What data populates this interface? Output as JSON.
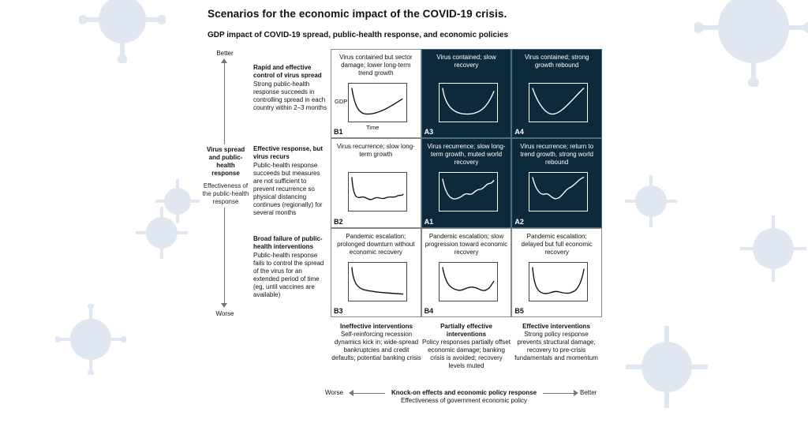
{
  "title": "Scenarios for the economic impact of the COVID-19 crisis.",
  "subtitle": "GDP impact of COVID-19 spread, public-health response, and economic policies",
  "vertical_axis": {
    "top": "Better",
    "bottom": "Worse",
    "title": "Virus spread and public-health response",
    "subtitle": "Effectiveness of the public-health response"
  },
  "horizontal_axis": {
    "left": "Worse",
    "right": "Better",
    "title": "Knock-on effects and economic policy response",
    "subtitle": "Effectiveness of government economic policy"
  },
  "rows": [
    {
      "head": "Rapid and effective control of virus spread",
      "body": "Strong public-health response succeeds in controlling spread in each country within 2–3 months"
    },
    {
      "head": "Effective response, but virus recurs",
      "body": "Public-health response succeeds but measures are not sufficient to prevent recurrence so physical distancing continues (regionally) for several months"
    },
    {
      "head": "Broad failure of public-health interventions",
      "body": "Public-health response fails to control the spread of the virus for an extended period of time (eg, until vaccines are available)"
    }
  ],
  "columns": [
    {
      "head": "Ineffective interventions",
      "body": "Self-reinforcing recession dynamics kick in; wide-spread bankruptcies and credit defaults; potential banking crisis"
    },
    {
      "head": "Partially effective interventions",
      "body": "Policy responses partially offset economic damage; banking crisis is avoided; recovery levels muted"
    },
    {
      "head": "Effective interventions",
      "body": "Strong policy response prevents structural damage; recovery to pre-crisis fundamentals and momentum"
    }
  ],
  "chart_axis_labels": {
    "y": "GDP",
    "x": "Time"
  },
  "cells": [
    {
      "code": "B1",
      "text": "Virus contained but sector damage; lower long-term trend growth",
      "shape": "u-low-recovery",
      "dark": false
    },
    {
      "code": "A3",
      "text": "Virus contained; slow recovery",
      "shape": "u-slow",
      "dark": true
    },
    {
      "code": "A4",
      "text": "Virus contained; strong growth rebound",
      "shape": "v-strong",
      "dark": true
    },
    {
      "code": "B2",
      "text": "Virus recurrence; slow long-term growth",
      "shape": "drop-flat-wavy",
      "dark": false
    },
    {
      "code": "A1",
      "text": "Virus recurrence; slow long-term growth, muted world recovery",
      "shape": "u-wavy-rise",
      "dark": true
    },
    {
      "code": "A2",
      "text": "Virus recurrence; return to trend growth, strong world rebound",
      "shape": "v-wavy-strong",
      "dark": true
    },
    {
      "code": "B3",
      "text": "Pandemic escalation; prolonged downturn without economic recovery",
      "shape": "l-flat",
      "dark": false
    },
    {
      "code": "B4",
      "text": "Pandemic escalation; slow progression toward economic recovery",
      "shape": "w-slow",
      "dark": false
    },
    {
      "code": "B5",
      "text": "Pandemic escalation; delayed but full economic recovery",
      "shape": "u-delayed-full",
      "dark": false
    }
  ],
  "colors": {
    "dark_cell": "#0d2a3d",
    "virus_deco": "#5b7fb8"
  }
}
